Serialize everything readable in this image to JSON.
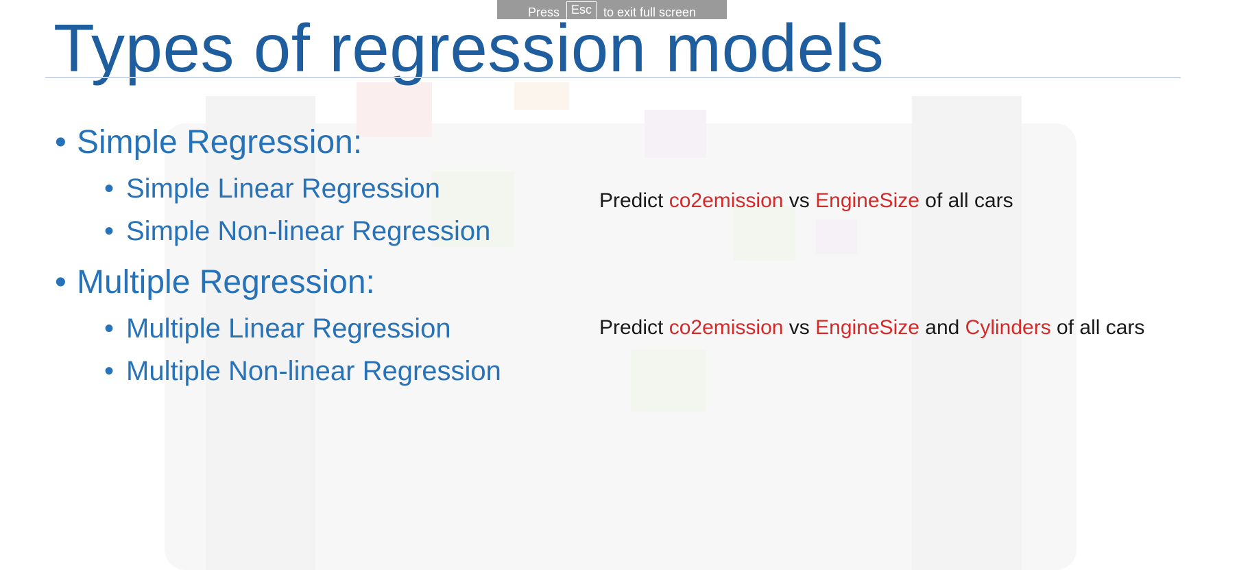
{
  "fullscreen_banner": {
    "press": "Press",
    "key": "Esc",
    "rest": "to exit full screen"
  },
  "slide": {
    "title": "Types of regression models",
    "sections": [
      {
        "heading": "Simple Regression:",
        "items": [
          "Simple Linear Regression",
          "Simple Non-linear Regression"
        ],
        "example": {
          "prefix": "Predict ",
          "var1": "co2emission",
          "mid1": " vs ",
          "var2": "EngineSize",
          "suffix": " of all cars"
        }
      },
      {
        "heading": "Multiple Regression:",
        "items": [
          "Multiple Linear Regression",
          "Multiple Non-linear Regression"
        ],
        "example": {
          "prefix": "Predict ",
          "var1": "co2emission",
          "mid1": " vs ",
          "var2": "EngineSize",
          "mid2": " and ",
          "var3": "Cylinders",
          "suffix": " of all cars"
        }
      }
    ],
    "bullet_glyph": "•"
  },
  "colors": {
    "title": "#1f5e9e",
    "bullets": "#2872b8",
    "highlight": "#d42a2a"
  }
}
